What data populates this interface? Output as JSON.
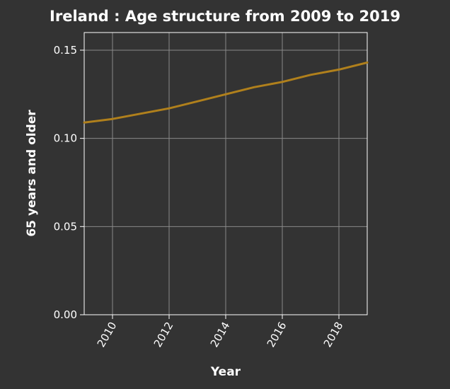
{
  "chart_data": {
    "type": "line",
    "title": "Ireland : Age structure from 2009 to 2019",
    "xlabel": "Year",
    "ylabel": "65 years and older",
    "xlim": [
      2009,
      2019
    ],
    "ylim": [
      0,
      0.16
    ],
    "x_ticks": [
      2010,
      2012,
      2014,
      2016,
      2018
    ],
    "x_tick_labels": [
      "2010",
      "2012",
      "2014",
      "2016",
      "2018"
    ],
    "y_ticks": [
      0,
      0.05,
      0.1,
      0.15
    ],
    "y_tick_labels": [
      "0.00",
      "0.05",
      "0.10",
      "0.15"
    ],
    "grid": true,
    "legend": "none",
    "series": [
      {
        "x": [
          2009,
          2010,
          2011,
          2012,
          2013,
          2014,
          2015,
          2016,
          2017,
          2018,
          2019
        ],
        "values": [
          0.109,
          0.111,
          0.114,
          0.117,
          0.121,
          0.125,
          0.129,
          0.132,
          0.136,
          0.139,
          0.143
        ],
        "color": "#b0801c"
      }
    ]
  },
  "colors": {
    "background": "#333333",
    "plot_background": "#333333",
    "grid": "#8a8a8a",
    "axes": "#ffffff",
    "text": "#ffffff",
    "line": "#b0801c"
  }
}
